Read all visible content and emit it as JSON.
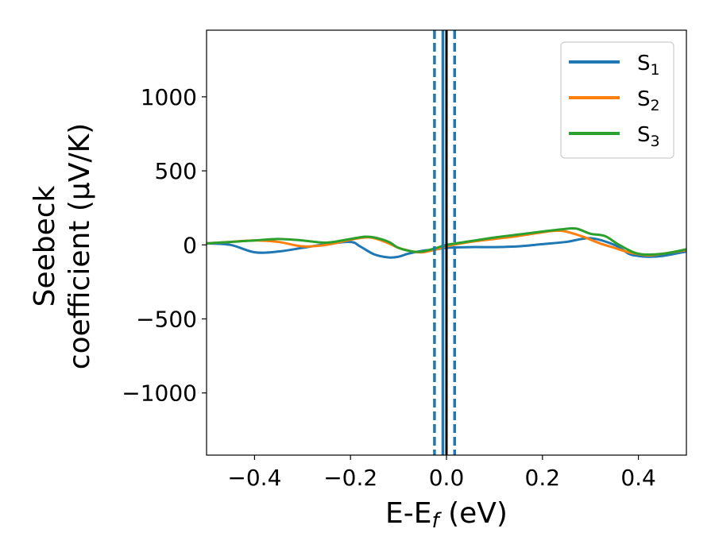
{
  "chart_data": {
    "type": "line",
    "title": "",
    "xlabel": "E-E_f (eV)",
    "ylabel": [
      "Seebeck",
      "coefficient  (μV/K)"
    ],
    "xlim": [
      -0.5,
      0.5
    ],
    "ylim": [
      -1420,
      1450
    ],
    "xticks": [
      -0.4,
      -0.2,
      0.0,
      0.2,
      0.4
    ],
    "xtick_labels": [
      "−0.4",
      "−0.2",
      "0.0",
      "0.2",
      "0.4"
    ],
    "yticks": [
      -1000,
      -500,
      0,
      500,
      1000
    ],
    "ytick_labels": [
      "−1000",
      "−500",
      "0",
      "500",
      "1000"
    ],
    "grid": false,
    "legend_position": "top-right",
    "series": [
      {
        "name": "S1",
        "color": "#1f77b4",
        "x": [
          -0.5,
          -0.45,
          -0.4,
          -0.35,
          -0.3,
          -0.25,
          -0.2,
          -0.18,
          -0.15,
          -0.12,
          -0.1,
          -0.08,
          -0.05,
          -0.02,
          0.0,
          0.05,
          0.1,
          0.15,
          0.2,
          0.25,
          0.3,
          0.35,
          0.38,
          0.4,
          0.42,
          0.45,
          0.5
        ],
        "y": [
          10,
          0,
          -50,
          -45,
          -20,
          5,
          20,
          -10,
          -65,
          -85,
          -80,
          -60,
          -40,
          -30,
          -20,
          -15,
          -15,
          -10,
          5,
          20,
          45,
          0,
          -60,
          -75,
          -80,
          -75,
          -45
        ]
      },
      {
        "name": "S2",
        "color": "#ff7f0e",
        "x": [
          -0.5,
          -0.45,
          -0.4,
          -0.35,
          -0.3,
          -0.25,
          -0.2,
          -0.17,
          -0.15,
          -0.12,
          -0.1,
          -0.07,
          -0.05,
          -0.02,
          0.0,
          0.05,
          0.1,
          0.15,
          0.2,
          0.24,
          0.28,
          0.32,
          0.35,
          0.38,
          0.42,
          0.45,
          0.5
        ],
        "y": [
          10,
          20,
          30,
          20,
          -10,
          0,
          35,
          50,
          45,
          10,
          -20,
          -45,
          -50,
          -30,
          -10,
          20,
          40,
          60,
          85,
          95,
          60,
          10,
          -20,
          -50,
          -70,
          -60,
          -35
        ]
      },
      {
        "name": "S3",
        "color": "#2ca02c",
        "x": [
          -0.5,
          -0.45,
          -0.4,
          -0.35,
          -0.3,
          -0.25,
          -0.2,
          -0.17,
          -0.15,
          -0.12,
          -0.1,
          -0.07,
          -0.05,
          -0.02,
          0.0,
          0.05,
          0.1,
          0.15,
          0.2,
          0.24,
          0.27,
          0.3,
          0.33,
          0.36,
          0.4,
          0.45,
          0.5
        ],
        "y": [
          10,
          20,
          30,
          40,
          30,
          15,
          40,
          55,
          50,
          20,
          -20,
          -45,
          -45,
          -20,
          0,
          25,
          50,
          70,
          90,
          105,
          110,
          75,
          60,
          0,
          -60,
          -60,
          -30
        ]
      }
    ],
    "vlines": [
      {
        "x": 0.0,
        "color": "#000000",
        "style": "solid"
      },
      {
        "x": -0.0075,
        "color": "#1f77b4",
        "style": "solid"
      },
      {
        "x": -0.025,
        "color": "#1f77b4",
        "style": "dashed"
      },
      {
        "x": 0.017,
        "color": "#1f77b4",
        "style": "dashed"
      }
    ]
  }
}
